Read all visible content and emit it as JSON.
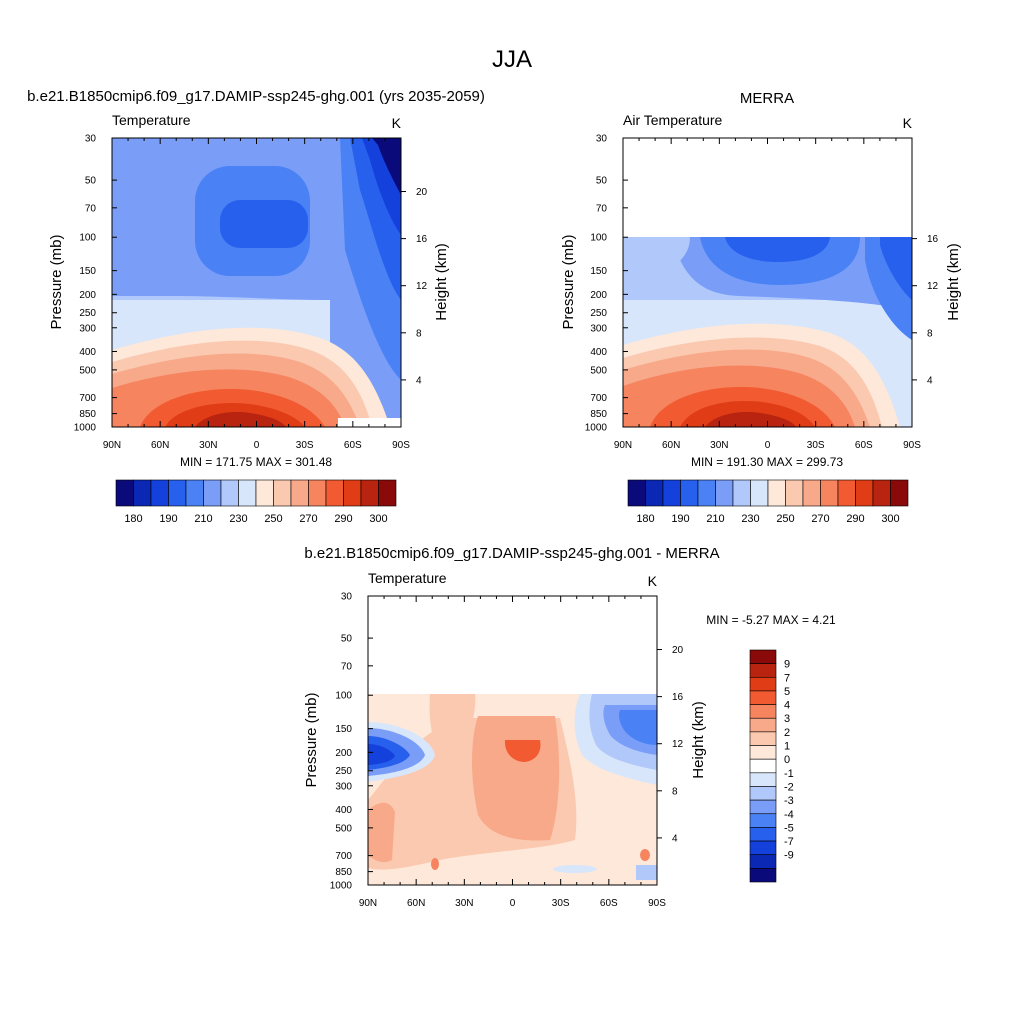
{
  "figure": {
    "title": "JJA",
    "colormap_abs": [
      "#0a0a7a",
      "#0a28b4",
      "#1440dc",
      "#2860ee",
      "#4a82f6",
      "#7a9ef8",
      "#b0c8fa",
      "#d8e6fb",
      "#fde8da",
      "#fbc9b0",
      "#f8a98a",
      "#f5845f",
      "#f25a32",
      "#e03c16",
      "#b82410",
      "#8a0a0a"
    ],
    "colormap_diff": [
      "#0a0a7a",
      "#0a28b4",
      "#1440dc",
      "#2860ee",
      "#4a82f6",
      "#7a9ef8",
      "#b0c8fa",
      "#d8e6fb",
      "#ffffff",
      "#fde8da",
      "#fbc9b0",
      "#f8a98a",
      "#f5845f",
      "#f25a32",
      "#e03c16",
      "#b82410",
      "#8a0a0a"
    ]
  },
  "chart_data": [
    {
      "id": "model",
      "type": "heatmap",
      "title": "b.e21.B1850cmip6.f09_g17.DAMIP-ssp245-ghg.001 (yrs 2035-2059)",
      "left_label": "Temperature",
      "right_label": "K",
      "ylabel": "Pressure (mb)",
      "y2label": "Height (km)",
      "x_ticks": [
        "90N",
        "60N",
        "30N",
        "0",
        "30S",
        "60S",
        "90S"
      ],
      "x_range": [
        90,
        -90
      ],
      "y_ticks": [
        30,
        50,
        70,
        100,
        150,
        200,
        250,
        300,
        400,
        500,
        700,
        850,
        1000
      ],
      "y_range": [
        30,
        1000
      ],
      "y_scale": "log",
      "y2_ticks": [
        4,
        8,
        12,
        16,
        20
      ],
      "min": 171.75,
      "max": 301.48,
      "minmax_text": "MIN = 171.75  MAX = 301.48",
      "data_top_pressure": 30,
      "colorbar_labels": [
        "180",
        "190",
        "210",
        "230",
        "250",
        "270",
        "290",
        "300"
      ]
    },
    {
      "id": "merra",
      "type": "heatmap",
      "title": "MERRA",
      "left_label": "Air Temperature",
      "right_label": "K",
      "ylabel": "Pressure (mb)",
      "y2label": "Height (km)",
      "x_ticks": [
        "90N",
        "60N",
        "30N",
        "0",
        "30S",
        "60S",
        "90S"
      ],
      "x_range": [
        90,
        -90
      ],
      "y_ticks": [
        30,
        50,
        70,
        100,
        150,
        200,
        250,
        300,
        400,
        500,
        700,
        850,
        1000
      ],
      "y_range": [
        30,
        1000
      ],
      "y_scale": "log",
      "y2_ticks": [
        4,
        8,
        12,
        16
      ],
      "min": 191.3,
      "max": 299.73,
      "minmax_text": "MIN = 191.30  MAX = 299.73",
      "data_top_pressure": 100,
      "colorbar_labels": [
        "180",
        "190",
        "210",
        "230",
        "250",
        "270",
        "290",
        "300"
      ]
    },
    {
      "id": "diff",
      "type": "heatmap",
      "title": "b.e21.B1850cmip6.f09_g17.DAMIP-ssp245-ghg.001 - MERRA",
      "left_label": "Temperature",
      "right_label": "K",
      "ylabel": "Pressure (mb)",
      "y2label": "Height (km)",
      "x_ticks": [
        "90N",
        "60N",
        "30N",
        "0",
        "30S",
        "60S",
        "90S"
      ],
      "x_range": [
        90,
        -90
      ],
      "y_ticks": [
        30,
        50,
        70,
        100,
        150,
        200,
        250,
        300,
        400,
        500,
        700,
        850,
        1000
      ],
      "y_range": [
        30,
        1000
      ],
      "y_scale": "log",
      "y2_ticks": [
        4,
        8,
        12,
        16,
        20
      ],
      "min": -5.27,
      "max": 4.21,
      "minmax_text": "MIN =  -5.27  MAX =   4.21",
      "data_top_pressure": 100,
      "colorbar_labels": [
        "9",
        "7",
        "5",
        "4",
        "3",
        "2",
        "1",
        "0",
        "-1",
        "-2",
        "-3",
        "-4",
        "-5",
        "-7",
        "-9"
      ]
    }
  ]
}
